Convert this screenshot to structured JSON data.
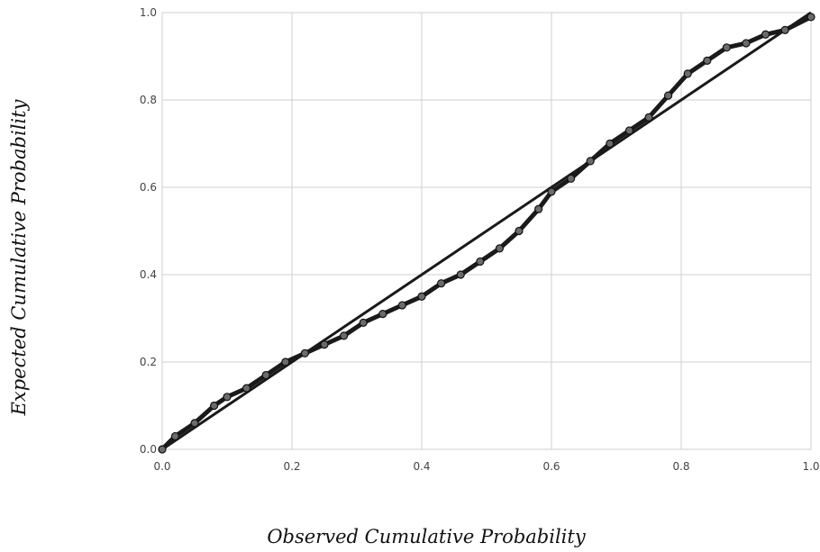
{
  "chart_data": {
    "type": "scatter",
    "title": "",
    "xlabel": "Observed Cumulative Probability",
    "ylabel": "Expected Cumulative Probability",
    "xlim": [
      0,
      1
    ],
    "ylim": [
      0,
      1
    ],
    "x_ticks": [
      0.0,
      0.2,
      0.4,
      0.6,
      0.8,
      1.0
    ],
    "y_ticks": [
      0.0,
      0.2,
      0.4,
      0.6,
      0.8,
      1.0
    ],
    "x_tick_labels": [
      "0.0",
      "0.2",
      "0.4",
      "0.6",
      "0.8",
      "1.0"
    ],
    "y_tick_labels": [
      "0.0",
      "0.2",
      "0.4",
      "0.6",
      "0.8",
      "1.0"
    ],
    "grid": true,
    "reference_line": {
      "x": [
        0,
        1
      ],
      "y": [
        0,
        1
      ]
    },
    "series": [
      {
        "points": [
          {
            "x": 0.0,
            "y": 0.0
          },
          {
            "x": 0.02,
            "y": 0.03
          },
          {
            "x": 0.05,
            "y": 0.06
          },
          {
            "x": 0.08,
            "y": 0.1
          },
          {
            "x": 0.1,
            "y": 0.12
          },
          {
            "x": 0.13,
            "y": 0.14
          },
          {
            "x": 0.16,
            "y": 0.17
          },
          {
            "x": 0.19,
            "y": 0.2
          },
          {
            "x": 0.22,
            "y": 0.22
          },
          {
            "x": 0.25,
            "y": 0.24
          },
          {
            "x": 0.28,
            "y": 0.26
          },
          {
            "x": 0.31,
            "y": 0.29
          },
          {
            "x": 0.34,
            "y": 0.31
          },
          {
            "x": 0.37,
            "y": 0.33
          },
          {
            "x": 0.4,
            "y": 0.35
          },
          {
            "x": 0.43,
            "y": 0.38
          },
          {
            "x": 0.46,
            "y": 0.4
          },
          {
            "x": 0.49,
            "y": 0.43
          },
          {
            "x": 0.52,
            "y": 0.46
          },
          {
            "x": 0.55,
            "y": 0.5
          },
          {
            "x": 0.58,
            "y": 0.55
          },
          {
            "x": 0.6,
            "y": 0.59
          },
          {
            "x": 0.63,
            "y": 0.62
          },
          {
            "x": 0.66,
            "y": 0.66
          },
          {
            "x": 0.69,
            "y": 0.7
          },
          {
            "x": 0.72,
            "y": 0.73
          },
          {
            "x": 0.75,
            "y": 0.76
          },
          {
            "x": 0.78,
            "y": 0.81
          },
          {
            "x": 0.81,
            "y": 0.86
          },
          {
            "x": 0.84,
            "y": 0.89
          },
          {
            "x": 0.87,
            "y": 0.92
          },
          {
            "x": 0.9,
            "y": 0.93
          },
          {
            "x": 0.93,
            "y": 0.95
          },
          {
            "x": 0.96,
            "y": 0.96
          },
          {
            "x": 1.0,
            "y": 0.99
          }
        ]
      }
    ]
  }
}
